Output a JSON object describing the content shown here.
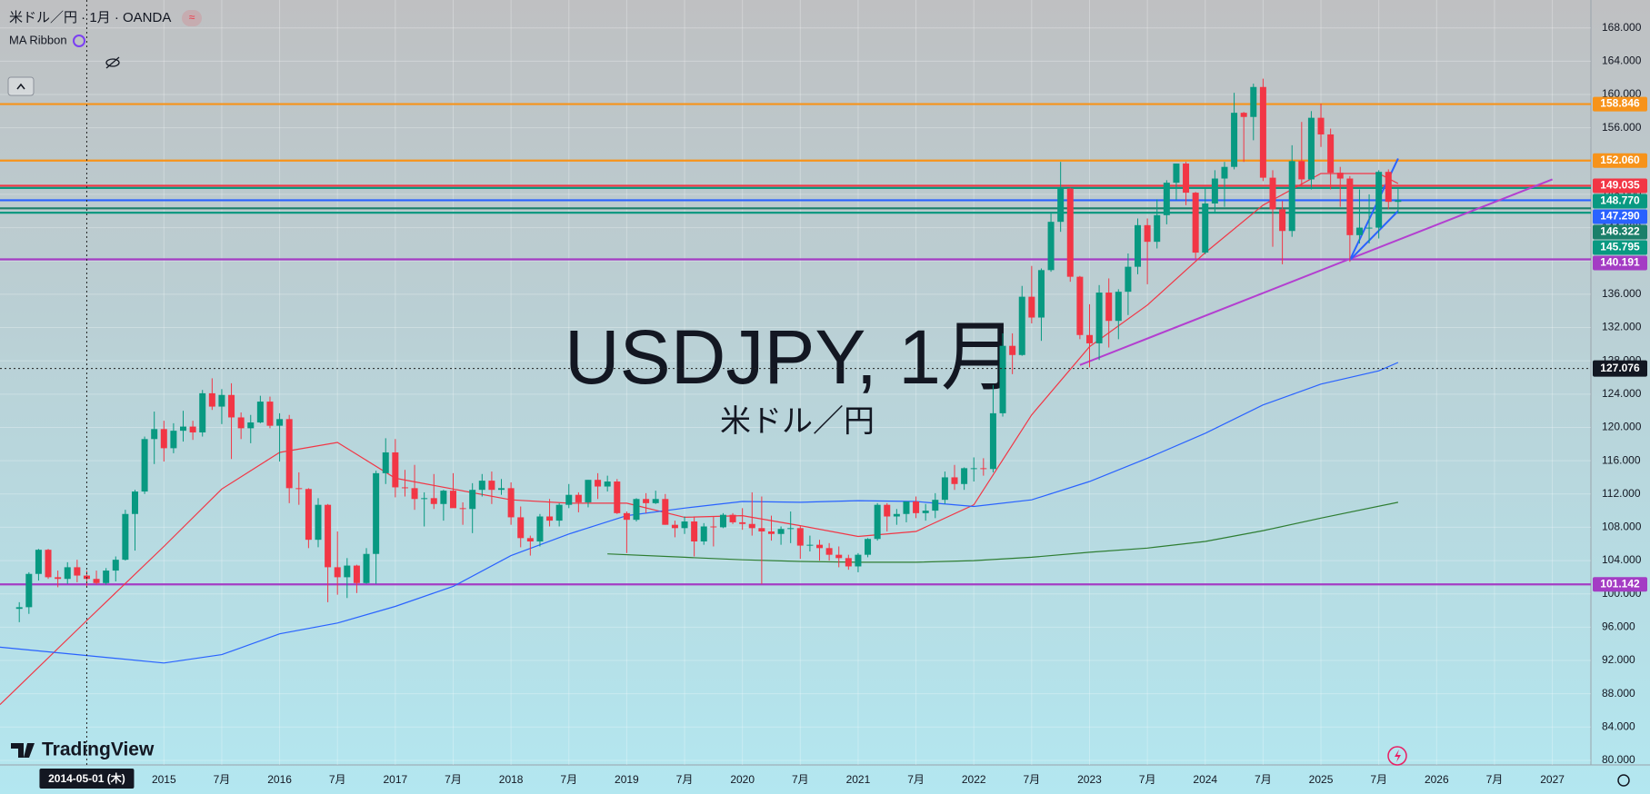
{
  "chart_data": {
    "type": "candlestick",
    "title": "米ドル／円 · 1月 · OANDA",
    "indicator": "MA Ribbon",
    "watermark": [
      "USDJPY, 1月",
      "米ドル／円"
    ],
    "brand": "TradingView",
    "up_color": "#089981",
    "down_color": "#f23645",
    "xlim": [
      "2013-08",
      "2027-05"
    ],
    "ylim": [
      79.45,
      171.35
    ],
    "grid": true,
    "xticks": [
      {
        "value": "2015-01",
        "label": "2015"
      },
      {
        "value": "2015-07",
        "label": "7月"
      },
      {
        "value": "2016-01",
        "label": "2016"
      },
      {
        "value": "2016-07",
        "label": "7月"
      },
      {
        "value": "2017-01",
        "label": "2017"
      },
      {
        "value": "2017-07",
        "label": "7月"
      },
      {
        "value": "2018-01",
        "label": "2018"
      },
      {
        "value": "2018-07",
        "label": "7月"
      },
      {
        "value": "2019-01",
        "label": "2019"
      },
      {
        "value": "2019-07",
        "label": "7月"
      },
      {
        "value": "2020-01",
        "label": "2020"
      },
      {
        "value": "2020-07",
        "label": "7月"
      },
      {
        "value": "2021-01",
        "label": "2021"
      },
      {
        "value": "2021-07",
        "label": "7月"
      },
      {
        "value": "2022-01",
        "label": "2022"
      },
      {
        "value": "2022-07",
        "label": "7月"
      },
      {
        "value": "2023-01",
        "label": "2023"
      },
      {
        "value": "2023-07",
        "label": "7月"
      },
      {
        "value": "2024-01",
        "label": "2024"
      },
      {
        "value": "2024-07",
        "label": "7月"
      },
      {
        "value": "2025-01",
        "label": "2025"
      },
      {
        "value": "2025-07",
        "label": "7月"
      },
      {
        "value": "2026-01",
        "label": "2026"
      },
      {
        "value": "2026-07",
        "label": "7月"
      },
      {
        "value": "2027-01",
        "label": "2027"
      }
    ],
    "yticks": [
      {
        "value": 80,
        "label": "80.000"
      },
      {
        "value": 84,
        "label": "84.000"
      },
      {
        "value": 88,
        "label": "88.000"
      },
      {
        "value": 92,
        "label": "92.000"
      },
      {
        "value": 96,
        "label": "96.000"
      },
      {
        "value": 100,
        "label": "100.000"
      },
      {
        "value": 104,
        "label": "104.000"
      },
      {
        "value": 108,
        "label": "108.000"
      },
      {
        "value": 112,
        "label": "112.000"
      },
      {
        "value": 116,
        "label": "116.000"
      },
      {
        "value": 120,
        "label": "120.000"
      },
      {
        "value": 124,
        "label": "124.000"
      },
      {
        "value": 128,
        "label": "128.000"
      },
      {
        "value": 132,
        "label": "132.000"
      },
      {
        "value": 136,
        "label": "136.000"
      },
      {
        "value": 140,
        "label": "140.000"
      },
      {
        "value": 144,
        "label": "144.000"
      },
      {
        "value": 148,
        "label": "148.000"
      },
      {
        "value": 152,
        "label": "152.000"
      },
      {
        "value": 156,
        "label": "156.000"
      },
      {
        "value": 160,
        "label": "160.000"
      },
      {
        "value": 164,
        "label": "164.000"
      },
      {
        "value": 168,
        "label": "168.000"
      }
    ],
    "x": [
      "2013-10",
      "2013-11",
      "2013-12",
      "2014-01",
      "2014-02",
      "2014-03",
      "2014-04",
      "2014-05",
      "2014-06",
      "2014-07",
      "2014-08",
      "2014-09",
      "2014-10",
      "2014-11",
      "2014-12",
      "2015-01",
      "2015-02",
      "2015-03",
      "2015-04",
      "2015-05",
      "2015-06",
      "2015-07",
      "2015-08",
      "2015-09",
      "2015-10",
      "2015-11",
      "2015-12",
      "2016-01",
      "2016-02",
      "2016-03",
      "2016-04",
      "2016-05",
      "2016-06",
      "2016-07",
      "2016-08",
      "2016-09",
      "2016-10",
      "2016-11",
      "2016-12",
      "2017-01",
      "2017-02",
      "2017-03",
      "2017-04",
      "2017-05",
      "2017-06",
      "2017-07",
      "2017-08",
      "2017-09",
      "2017-10",
      "2017-11",
      "2017-12",
      "2018-01",
      "2018-02",
      "2018-03",
      "2018-04",
      "2018-05",
      "2018-06",
      "2018-07",
      "2018-08",
      "2018-09",
      "2018-10",
      "2018-11",
      "2018-12",
      "2019-01",
      "2019-02",
      "2019-03",
      "2019-04",
      "2019-05",
      "2019-06",
      "2019-07",
      "2019-08",
      "2019-09",
      "2019-10",
      "2019-11",
      "2019-12",
      "2020-01",
      "2020-02",
      "2020-03",
      "2020-04",
      "2020-05",
      "2020-06",
      "2020-07",
      "2020-08",
      "2020-09",
      "2020-10",
      "2020-11",
      "2020-12",
      "2021-01",
      "2021-02",
      "2021-03",
      "2021-04",
      "2021-05",
      "2021-06",
      "2021-07",
      "2021-08",
      "2021-09",
      "2021-10",
      "2021-11",
      "2021-12",
      "2022-01",
      "2022-02",
      "2022-03",
      "2022-04",
      "2022-05",
      "2022-06",
      "2022-07",
      "2022-08",
      "2022-09",
      "2022-10",
      "2022-11",
      "2022-12",
      "2023-01",
      "2023-02",
      "2023-03",
      "2023-04",
      "2023-05",
      "2023-06",
      "2023-07",
      "2023-08",
      "2023-09",
      "2023-10",
      "2023-11",
      "2023-12",
      "2024-01",
      "2024-02",
      "2024-03",
      "2024-04",
      "2024-05",
      "2024-06",
      "2024-07",
      "2024-08",
      "2024-09",
      "2024-10",
      "2024-11",
      "2024-12",
      "2025-01",
      "2025-02",
      "2025-03",
      "2025-04",
      "2025-05",
      "2025-06",
      "2025-07",
      "2025-08",
      "2025-09"
    ],
    "open": [
      98.2,
      98.4,
      102.4,
      105.3,
      102.0,
      101.8,
      103.2,
      102.2,
      101.8,
      101.3,
      102.8,
      104.1,
      109.6,
      112.3,
      118.6,
      119.8,
      117.5,
      119.6,
      120.1,
      119.4,
      124.1,
      122.5,
      123.9,
      121.2,
      119.9,
      120.6,
      123.1,
      120.2,
      121.0,
      112.7,
      112.6,
      106.5,
      110.7,
      103.2,
      102.0,
      103.4,
      101.3,
      104.8,
      114.5,
      117.0,
      112.8,
      112.7,
      111.4,
      111.5,
      110.8,
      112.4,
      110.3,
      110.2,
      112.5,
      113.6,
      112.5,
      112.7,
      109.2,
      106.7,
      106.3,
      109.3,
      108.8,
      110.7,
      111.9,
      111.0,
      113.7,
      112.9,
      113.5,
      109.7,
      108.9,
      111.4,
      110.9,
      111.4,
      108.3,
      107.9,
      108.7,
      106.3,
      108.1,
      108.0,
      109.5,
      108.6,
      108.4,
      107.9,
      107.5,
      107.2,
      107.8,
      107.9,
      105.8,
      105.9,
      105.5,
      104.7,
      104.3,
      103.3,
      104.7,
      106.6,
      110.7,
      109.3,
      109.6,
      111.1,
      109.7,
      110.0,
      111.3,
      114.0,
      113.2,
      115.1,
      115.1,
      115.0,
      121.7,
      129.8,
      128.7,
      135.7,
      133.2,
      138.9,
      144.7,
      148.7,
      138.1,
      131.1,
      130.1,
      136.2,
      132.8,
      136.3,
      139.3,
      144.3,
      142.3,
      145.5,
      149.4,
      151.7,
      148.2,
      141.0,
      146.9,
      149.9,
      151.3,
      157.8,
      157.3,
      160.9,
      150.0,
      146.2,
      143.6,
      152.0,
      149.8,
      157.2,
      155.2,
      150.6,
      149.9,
      143.1,
      144.0,
      144.0,
      150.7,
      147.1
    ],
    "high": [
      99.0,
      102.6,
      105.4,
      105.4,
      102.8,
      103.8,
      104.1,
      102.8,
      102.8,
      103.1,
      104.5,
      110.1,
      112.5,
      118.9,
      121.9,
      120.8,
      120.5,
      122.0,
      120.8,
      124.5,
      125.9,
      124.6,
      125.3,
      121.8,
      121.5,
      123.8,
      123.7,
      121.7,
      121.5,
      114.6,
      112.7,
      111.5,
      110.8,
      107.5,
      104.3,
      103.5,
      105.5,
      114.8,
      118.7,
      118.6,
      114.9,
      115.5,
      112.2,
      114.4,
      112.5,
      114.5,
      111.0,
      113.3,
      114.4,
      114.7,
      113.8,
      113.4,
      110.5,
      107.0,
      109.6,
      111.4,
      110.9,
      113.2,
      112.2,
      113.7,
      114.5,
      114.2,
      113.8,
      109.9,
      111.5,
      112.1,
      112.4,
      112.0,
      108.8,
      109.3,
      109.3,
      108.5,
      109.3,
      109.7,
      109.7,
      110.3,
      112.2,
      111.7,
      109.4,
      108.1,
      109.9,
      108.2,
      107.0,
      106.5,
      106.1,
      105.7,
      104.7,
      104.9,
      106.7,
      110.9,
      110.9,
      110.2,
      111.1,
      111.7,
      110.8,
      112.1,
      114.7,
      115.5,
      115.2,
      116.4,
      116.3,
      125.1,
      131.3,
      131.3,
      137.0,
      139.4,
      139.1,
      145.9,
      151.9,
      148.8,
      138.2,
      134.8,
      137.1,
      137.9,
      136.6,
      140.9,
      145.1,
      145.1,
      147.4,
      149.7,
      151.7,
      151.9,
      148.3,
      148.8,
      150.9,
      151.9,
      160.2,
      157.9,
      161.3,
      161.9,
      150.9,
      147.2,
      153.9,
      156.7,
      158.0,
      158.9,
      155.9,
      151.3,
      150.2,
      148.6,
      148.0,
      150.9,
      151.0,
      148.8
    ],
    "low": [
      96.6,
      97.6,
      101.6,
      101.8,
      100.8,
      101.2,
      101.4,
      100.8,
      101.1,
      101.1,
      101.5,
      104.0,
      105.2,
      112.0,
      115.6,
      115.9,
      116.9,
      118.3,
      118.5,
      118.9,
      122.1,
      120.4,
      116.2,
      118.6,
      118.1,
      120.5,
      119.9,
      115.9,
      110.9,
      110.7,
      105.5,
      105.6,
      99.0,
      99.9,
      99.5,
      100.1,
      101.2,
      101.2,
      113.2,
      111.6,
      111.7,
      110.1,
      108.1,
      110.2,
      108.8,
      110.6,
      108.3,
      107.3,
      111.7,
      110.8,
      111.9,
      108.3,
      105.6,
      104.6,
      105.7,
      108.1,
      108.1,
      110.3,
      109.8,
      110.4,
      111.4,
      112.3,
      109.6,
      104.9,
      108.7,
      109.7,
      110.8,
      108.3,
      106.8,
      107.2,
      104.5,
      105.9,
      105.7,
      107.9,
      108.4,
      107.7,
      107.0,
      101.2,
      106.4,
      105.9,
      106.1,
      104.2,
      105.1,
      104.0,
      104.0,
      103.2,
      102.9,
      102.6,
      104.4,
      106.4,
      107.5,
      108.3,
      108.6,
      109.1,
      108.8,
      109.1,
      110.8,
      112.5,
      112.5,
      113.5,
      114.2,
      114.6,
      121.3,
      126.4,
      128.6,
      132.5,
      130.4,
      138.7,
      143.5,
      137.5,
      130.6,
      127.2,
      128.1,
      129.6,
      130.6,
      133.5,
      138.4,
      137.2,
      141.5,
      144.4,
      147.3,
      146.7,
      140.3,
      140.8,
      145.9,
      146.5,
      151.0,
      151.9,
      154.5,
      149.6,
      141.7,
      139.6,
      142.9,
      148.9,
      148.6,
      153.7,
      148.6,
      146.5,
      139.9,
      142.1,
      142.1,
      142.7,
      146.2,
      145.9
    ],
    "close": [
      98.4,
      102.4,
      105.3,
      102.0,
      101.8,
      103.2,
      102.2,
      101.8,
      101.3,
      102.8,
      104.1,
      109.6,
      112.3,
      118.6,
      119.8,
      117.5,
      119.6,
      120.1,
      119.4,
      124.1,
      122.5,
      123.9,
      121.2,
      119.9,
      120.6,
      123.1,
      120.2,
      121.0,
      112.7,
      112.6,
      106.5,
      110.7,
      103.2,
      102.0,
      103.4,
      101.3,
      104.8,
      114.5,
      117.0,
      112.8,
      112.7,
      111.4,
      111.5,
      110.8,
      112.4,
      110.3,
      110.2,
      112.5,
      113.6,
      112.5,
      112.7,
      109.2,
      106.7,
      106.3,
      109.3,
      108.8,
      110.7,
      111.9,
      111.0,
      113.7,
      112.9,
      113.5,
      109.7,
      108.9,
      111.4,
      110.9,
      111.4,
      108.3,
      107.9,
      108.7,
      106.3,
      108.1,
      108.0,
      109.5,
      108.6,
      108.4,
      107.9,
      107.5,
      107.2,
      107.8,
      107.9,
      105.8,
      105.9,
      105.5,
      104.7,
      104.3,
      103.3,
      104.7,
      106.6,
      110.7,
      109.3,
      109.6,
      111.1,
      109.7,
      110.0,
      111.3,
      114.0,
      113.2,
      115.1,
      115.1,
      115.0,
      121.7,
      129.8,
      128.7,
      135.7,
      133.2,
      138.9,
      144.7,
      148.7,
      138.1,
      131.1,
      130.1,
      136.2,
      132.8,
      136.3,
      139.3,
      144.3,
      142.3,
      145.5,
      149.4,
      151.7,
      148.2,
      141.0,
      146.9,
      149.9,
      151.3,
      157.8,
      157.3,
      160.9,
      150.0,
      146.2,
      143.6,
      152.0,
      149.8,
      157.2,
      155.2,
      150.6,
      149.9,
      143.1,
      144.0,
      144.0,
      150.7,
      147.1,
      147.3
    ],
    "ma": [
      {
        "color": "#f23645",
        "x": [
          "2013-08",
          "2014-05",
          "2015-01",
          "2015-07",
          "2016-01",
          "2016-07",
          "2017-01",
          "2017-07",
          "2018-01",
          "2018-07",
          "2019-01",
          "2019-07",
          "2020-01",
          "2020-07",
          "2021-01",
          "2021-07",
          "2022-01",
          "2022-07",
          "2023-01",
          "2023-07",
          "2024-01",
          "2024-07",
          "2025-01",
          "2025-07",
          "2025-09"
        ],
        "values": [
          86.7,
          96.8,
          105.7,
          112.6,
          117.0,
          118.2,
          113.9,
          112.6,
          111.3,
          110.9,
          110.9,
          109.2,
          109.4,
          108.2,
          106.9,
          107.5,
          110.7,
          121.5,
          129.7,
          134.7,
          141.0,
          146.7,
          150.5,
          150.5,
          149.3
        ]
      },
      {
        "color": "#2962ff",
        "x": [
          "2013-08",
          "2015-01",
          "2015-07",
          "2016-01",
          "2016-07",
          "2017-01",
          "2017-07",
          "2018-01",
          "2018-07",
          "2019-01",
          "2019-07",
          "2020-01",
          "2020-07",
          "2021-01",
          "2021-07",
          "2022-01",
          "2022-07",
          "2023-01",
          "2023-07",
          "2024-01",
          "2024-07",
          "2025-01",
          "2025-07",
          "2025-09"
        ],
        "values": [
          93.6,
          91.7,
          92.7,
          95.2,
          96.5,
          98.5,
          100.9,
          104.6,
          107.2,
          109.4,
          110.3,
          111.1,
          111.0,
          111.2,
          111.1,
          110.5,
          111.3,
          113.5,
          116.3,
          119.3,
          122.7,
          125.2,
          126.8,
          127.8
        ]
      },
      {
        "color": "#2e7d32",
        "x": [
          "2018-11",
          "2019-07",
          "2020-01",
          "2020-07",
          "2021-01",
          "2021-07",
          "2022-01",
          "2022-07",
          "2023-01",
          "2023-07",
          "2024-01",
          "2024-07",
          "2025-01",
          "2025-09"
        ],
        "values": [
          104.8,
          104.4,
          104.1,
          103.9,
          103.8,
          103.8,
          104.0,
          104.4,
          105.0,
          105.5,
          106.3,
          107.6,
          109.1,
          111.0
        ]
      }
    ],
    "drawings": [
      {
        "color": "#b33fd0",
        "x": [
          "2022-12",
          "2027-01"
        ],
        "values": [
          127.5,
          149.8
        ]
      },
      {
        "color": "#2962ff",
        "x": [
          "2025-04",
          "2025-09"
        ],
        "values": [
          140.1,
          152.3
        ]
      },
      {
        "color": "#2962ff",
        "x": [
          "2025-04",
          "2025-09"
        ],
        "values": [
          140.1,
          146.0
        ]
      }
    ],
    "levels": [
      {
        "value": 158.846,
        "color": "#f7931a"
      },
      {
        "value": {
          "value": 152.06,
          "label": "152.060"
        },
        "color": "#f7931a"
      },
      {
        "value": 149.035,
        "color": "#f23645"
      },
      {
        "value": {
          "value": 148.77,
          "label": "148.770"
        },
        "color": "#089981"
      },
      {
        "value": {
          "value": 147.29,
          "label": "147.290"
        },
        "color": "#2962ff"
      },
      {
        "value": 146.322,
        "color": "#1b7f6a"
      },
      {
        "value": 145.795,
        "color": "#089981"
      },
      {
        "value": 140.191,
        "color": "#a43cc4"
      },
      {
        "value": 101.142,
        "color": "#a43cc4"
      }
    ],
    "crosshair": {
      "x": {
        "value": "2014-05",
        "label": "2014-05-01 (木)"
      },
      "y": 127.076
    }
  }
}
